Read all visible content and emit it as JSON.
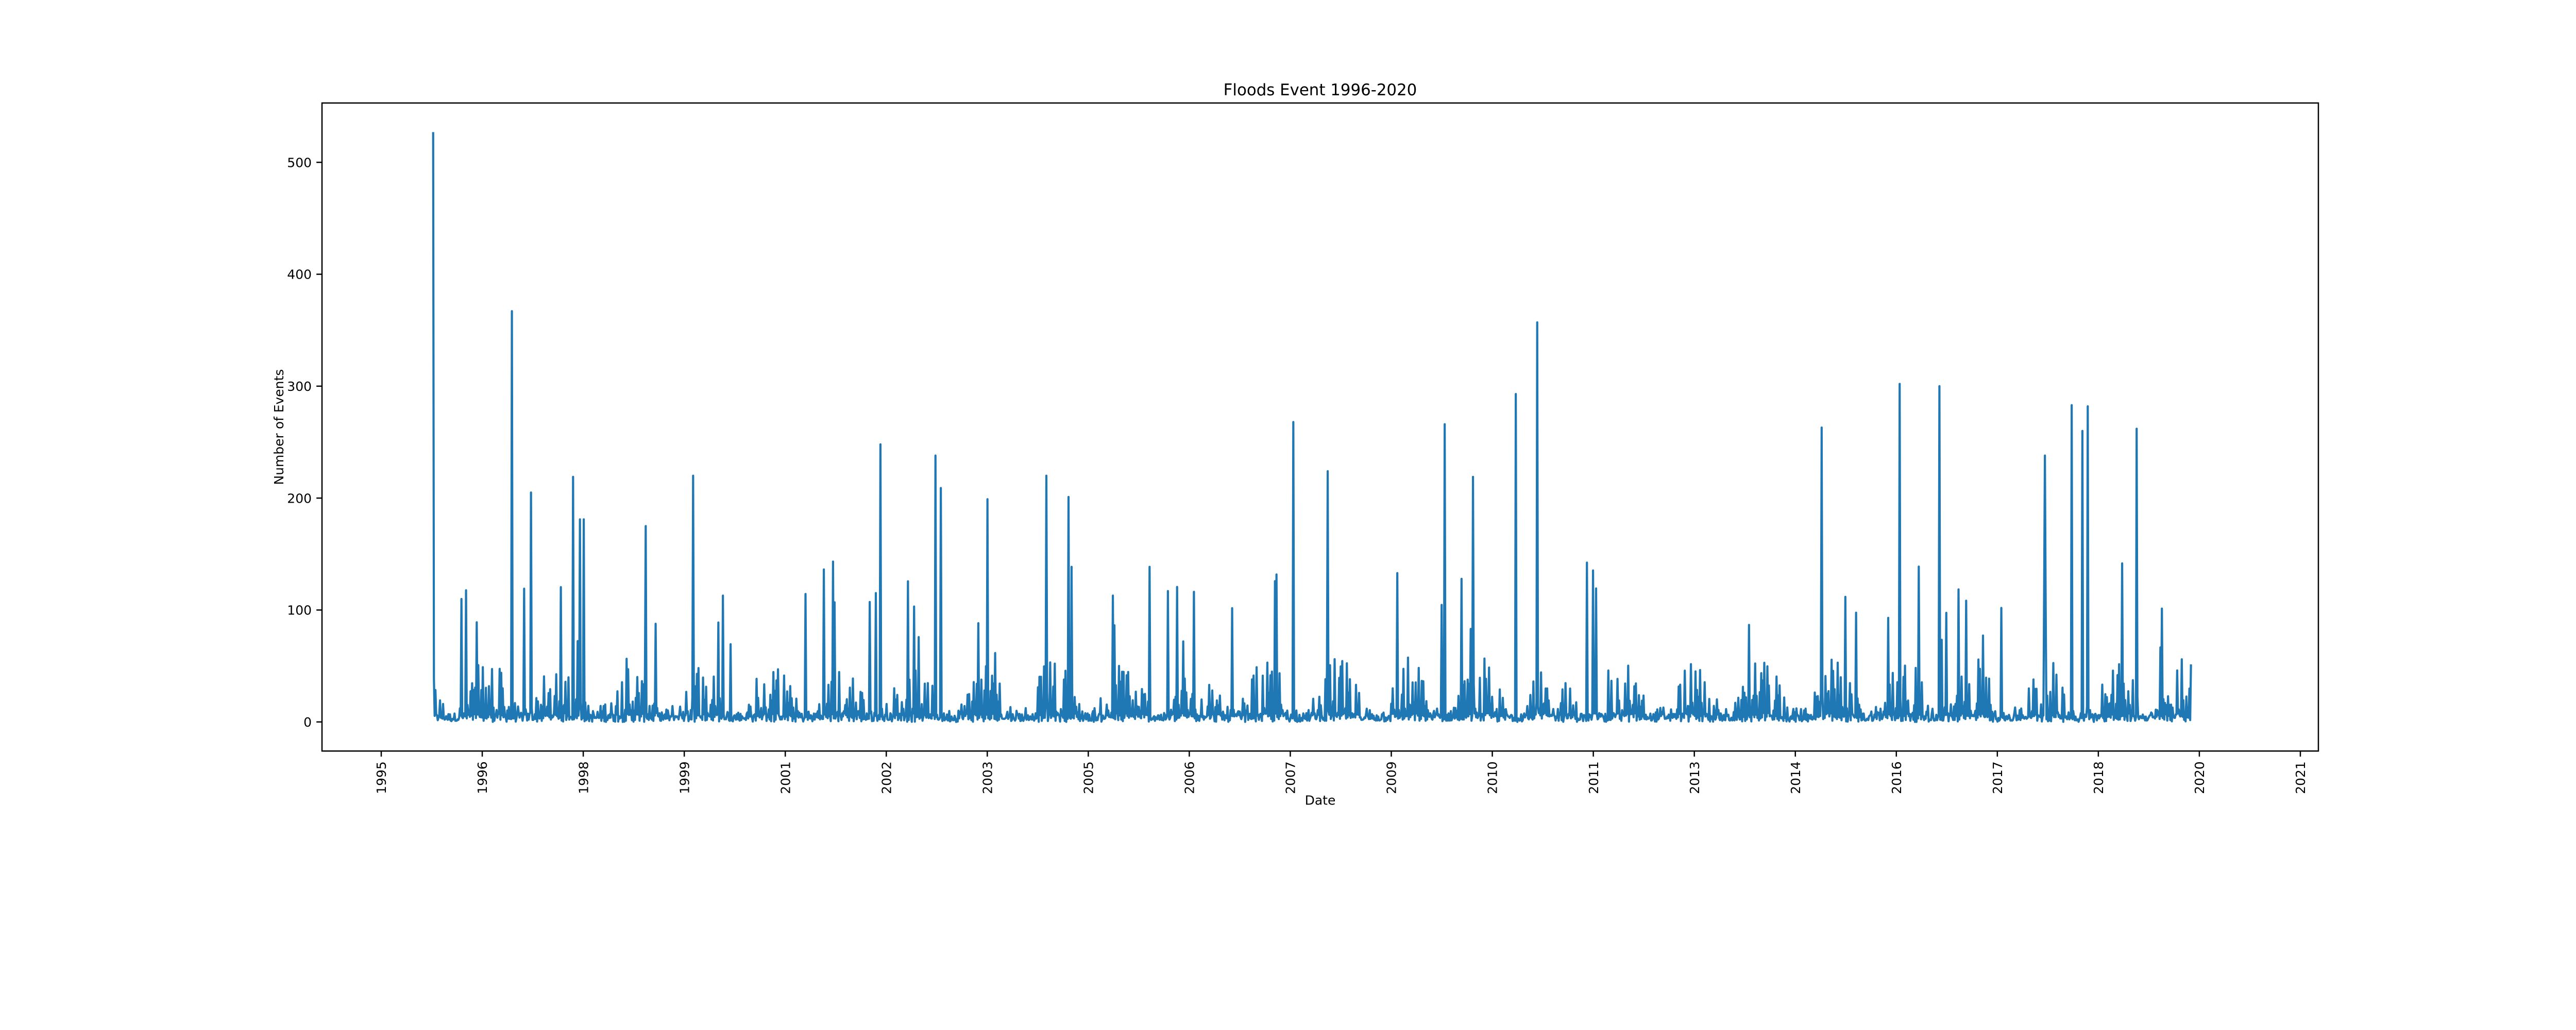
{
  "chart_data": {
    "type": "line",
    "title": "Floods Event 1996-2020",
    "xlabel": "Date",
    "ylabel": "Number of Events",
    "ylim": [
      -26,
      553
    ],
    "xlim": [
      1993.9,
      2022.1
    ],
    "y_ticks": [
      0,
      100,
      200,
      300,
      400,
      500
    ],
    "x_tick_labels": [
      "1995",
      "1996",
      "1998",
      "1999",
      "2001",
      "2002",
      "2003",
      "2005",
      "2006",
      "2007",
      "2009",
      "2010",
      "2011",
      "2013",
      "2014",
      "2016",
      "2017",
      "2018",
      "2020",
      "2021"
    ],
    "x_data_range": [
      1995.47,
      2020.3
    ],
    "grid": false,
    "legend": "none",
    "color": "#1f77b4",
    "typical_baseline_range": [
      0,
      60
    ],
    "peaks": [
      {
        "x": 1995.47,
        "y": 527
      },
      {
        "x": 1996.58,
        "y": 367
      },
      {
        "x": 1996.85,
        "y": 205
      },
      {
        "x": 1997.45,
        "y": 219
      },
      {
        "x": 1997.54,
        "y": 181
      },
      {
        "x": 1997.6,
        "y": 181
      },
      {
        "x": 1998.47,
        "y": 175
      },
      {
        "x": 1999.14,
        "y": 220
      },
      {
        "x": 2001.79,
        "y": 248
      },
      {
        "x": 2002.57,
        "y": 238
      },
      {
        "x": 2002.64,
        "y": 209
      },
      {
        "x": 2003.3,
        "y": 199
      },
      {
        "x": 2004.13,
        "y": 220
      },
      {
        "x": 2004.44,
        "y": 201
      },
      {
        "x": 2007.62,
        "y": 268
      },
      {
        "x": 2008.11,
        "y": 224
      },
      {
        "x": 2009.76,
        "y": 266
      },
      {
        "x": 2010.16,
        "y": 219
      },
      {
        "x": 2010.76,
        "y": 293
      },
      {
        "x": 2011.07,
        "y": 357
      },
      {
        "x": 2015.08,
        "y": 263
      },
      {
        "x": 2016.19,
        "y": 302
      },
      {
        "x": 2016.75,
        "y": 300
      },
      {
        "x": 2018.24,
        "y": 238
      },
      {
        "x": 2018.62,
        "y": 283
      },
      {
        "x": 2018.77,
        "y": 260
      },
      {
        "x": 2018.84,
        "y": 282
      },
      {
        "x": 2019.53,
        "y": 262
      }
    ]
  }
}
